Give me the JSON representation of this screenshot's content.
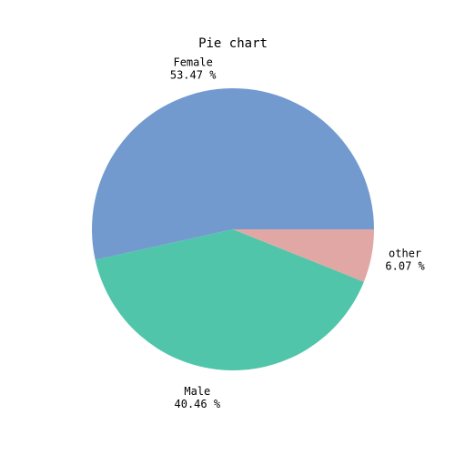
{
  "chart_data": {
    "type": "pie",
    "title": "Pie chart",
    "slices": [
      {
        "name": "Female",
        "percent_label": "53.47 %",
        "value": 53.47,
        "color": "#729ACF"
      },
      {
        "name": "Male",
        "percent_label": "40.46 %",
        "value": 40.46,
        "color": "#50C5AA"
      },
      {
        "name": "other",
        "percent_label": "6.07 %",
        "value": 6.07,
        "color": "#E1A7A4"
      }
    ],
    "start_angle_deg": 0,
    "direction": "counterclockwise"
  }
}
